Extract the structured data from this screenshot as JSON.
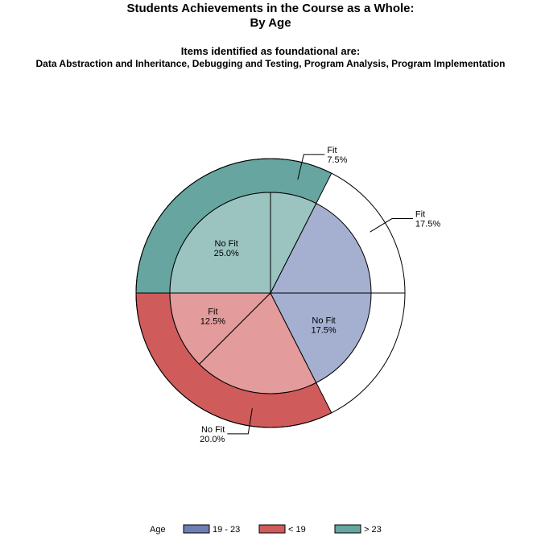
{
  "titles": {
    "line1": "Students Achievements in the Course as a Whole:",
    "line2": "By Age",
    "line3": "Items identified as foundational are:",
    "line4": "Data Abstraction and Inheritance, Debugging and Testing, Program Analysis, Program Implementation"
  },
  "legend": {
    "title": "Age",
    "items": [
      {
        "label": "19 - 23",
        "color": "#6f7eb3"
      },
      {
        "label": "< 19",
        "color": "#d05b5b"
      },
      {
        "label": "> 23",
        "color": "#66a5a0"
      }
    ]
  },
  "chart_data": {
    "type": "pie",
    "title": "Students Achievements in the Course as a Whole: By Age",
    "outer_ring": {
      "groups": [
        {
          "name": "19 - 23",
          "value": 35.0,
          "color": "#6f7eb3"
        },
        {
          "name": "> 23",
          "value": 32.5,
          "color": "#66a5a0"
        },
        {
          "name": "< 19",
          "value": 32.5,
          "color": "#d05b5b"
        }
      ]
    },
    "inner_slices": [
      {
        "group": "19 - 23",
        "label": "Fit",
        "value": 17.5,
        "percent_label": "17.5%",
        "color": "#a5b0d1",
        "label_outside": true
      },
      {
        "group": "> 23",
        "label": "Fit",
        "value": 7.5,
        "percent_label": "7.5%",
        "color": "#9bc4c1",
        "label_outside": true
      },
      {
        "group": "> 23",
        "label": "No Fit",
        "value": 25.0,
        "percent_label": "25.0%",
        "color": "#9bc4c1",
        "label_outside": false
      },
      {
        "group": "< 19",
        "label": "Fit",
        "value": 12.5,
        "percent_label": "12.5%",
        "color": "#e39b9b",
        "label_outside": false
      },
      {
        "group": "< 19",
        "label": "No Fit",
        "value": 20.0,
        "percent_label": "20.0%",
        "color": "#e39b9b",
        "label_outside": true
      },
      {
        "group": "19 - 23",
        "label": "No Fit",
        "value": 17.5,
        "percent_label": "17.5%",
        "color": "#a5b0d1",
        "label_outside": false
      }
    ]
  }
}
